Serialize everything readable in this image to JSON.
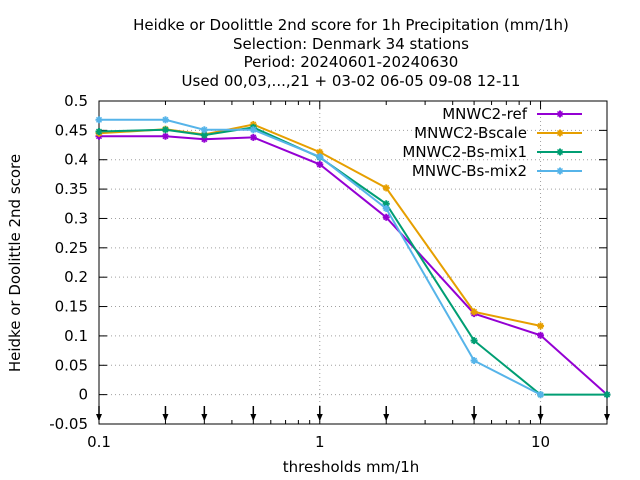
{
  "chart_data": {
    "type": "line",
    "title": [
      "Heidke or Doolittle 2nd score  for 1h Precipitation (mm/1h)",
      "Selection: Denmark     34 stations",
      "Period: 20240601-20240630",
      "Used 00,03,...,21 + 03-02 06-05 09-08 12-11"
    ],
    "xlabel": "thresholds mm/1h",
    "ylabel": "Heidke or Doolittle 2nd score",
    "xscale": "log",
    "xlim": [
      0.1,
      20
    ],
    "ylim": [
      -0.05,
      0.5
    ],
    "xticks": [
      {
        "value": 0.1,
        "label": "0.1"
      },
      {
        "value": 1,
        "label": "1"
      },
      {
        "value": 10,
        "label": "10"
      }
    ],
    "yticks": [
      {
        "value": -0.05,
        "label": "-0.05"
      },
      {
        "value": 0,
        "label": "0"
      },
      {
        "value": 0.05,
        "label": "0.05"
      },
      {
        "value": 0.1,
        "label": "0.1"
      },
      {
        "value": 0.15,
        "label": "0.15"
      },
      {
        "value": 0.2,
        "label": "0.2"
      },
      {
        "value": 0.25,
        "label": "0.25"
      },
      {
        "value": 0.3,
        "label": "0.3"
      },
      {
        "value": 0.35,
        "label": "0.35"
      },
      {
        "value": 0.4,
        "label": "0.4"
      },
      {
        "value": 0.45,
        "label": "0.45"
      },
      {
        "value": 0.5,
        "label": "0.5"
      }
    ],
    "threshold_markers": [
      0.1,
      0.2,
      0.3,
      0.5,
      1,
      2,
      5,
      10,
      20
    ],
    "grid": true,
    "legend_position": "top-right",
    "x": [
      0.1,
      0.2,
      0.3,
      0.5,
      1,
      2,
      5,
      10,
      20
    ],
    "series": [
      {
        "name": "MNWC2-ref",
        "color": "#9400d3",
        "values": [
          0.44,
          0.44,
          0.435,
          0.438,
          0.392,
          0.302,
          0.138,
          0.101,
          0.0
        ]
      },
      {
        "name": "MNWC2-Bscale",
        "color": "#e69f00",
        "values": [
          0.445,
          0.452,
          0.443,
          0.46,
          0.413,
          0.352,
          0.141,
          0.117,
          null
        ]
      },
      {
        "name": "MNWC2-Bs-mix1",
        "color": "#009e73",
        "values": [
          0.448,
          0.451,
          0.442,
          0.455,
          0.404,
          0.325,
          0.092,
          0.0,
          0.0
        ]
      },
      {
        "name": "MNWC-Bs-mix2",
        "color": "#56b4e9",
        "values": [
          0.468,
          0.468,
          0.451,
          0.451,
          0.405,
          0.317,
          0.058,
          0.0,
          null
        ]
      }
    ]
  }
}
